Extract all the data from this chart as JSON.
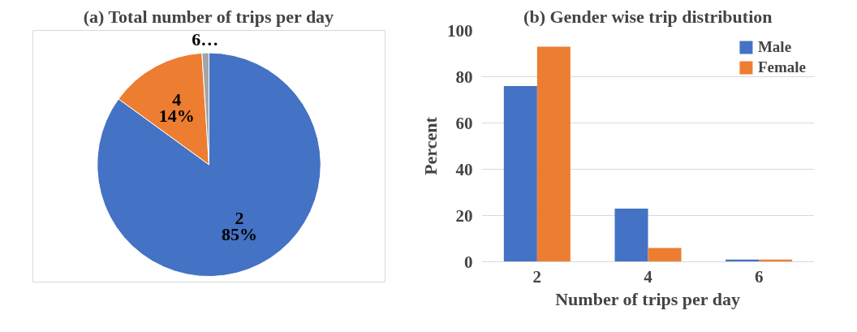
{
  "chart_data": [
    {
      "type": "pie",
      "title": "(a) Total number of trips per day",
      "categories": [
        "2",
        "4",
        "6…"
      ],
      "values": [
        85,
        14,
        1
      ],
      "colors": [
        "#4472c4",
        "#ed7d31",
        "#a5a5a5"
      ],
      "value_labels": [
        "85%",
        "14%",
        null
      ]
    },
    {
      "type": "bar",
      "title": "(b) Gender wise trip distribution",
      "categories": [
        "2",
        "4",
        "6"
      ],
      "xlabel": "Number of trips per day",
      "ylabel": "Percent",
      "ylim": [
        0,
        100
      ],
      "yticks": [
        0,
        20,
        40,
        60,
        80,
        100
      ],
      "grid": "y",
      "legend": "top right",
      "series": [
        {
          "name": "Male",
          "color": "#4472c4",
          "values": [
            76,
            23,
            1
          ]
        },
        {
          "name": "Female",
          "color": "#ed7d31",
          "values": [
            93,
            6,
            1
          ]
        }
      ]
    }
  ]
}
